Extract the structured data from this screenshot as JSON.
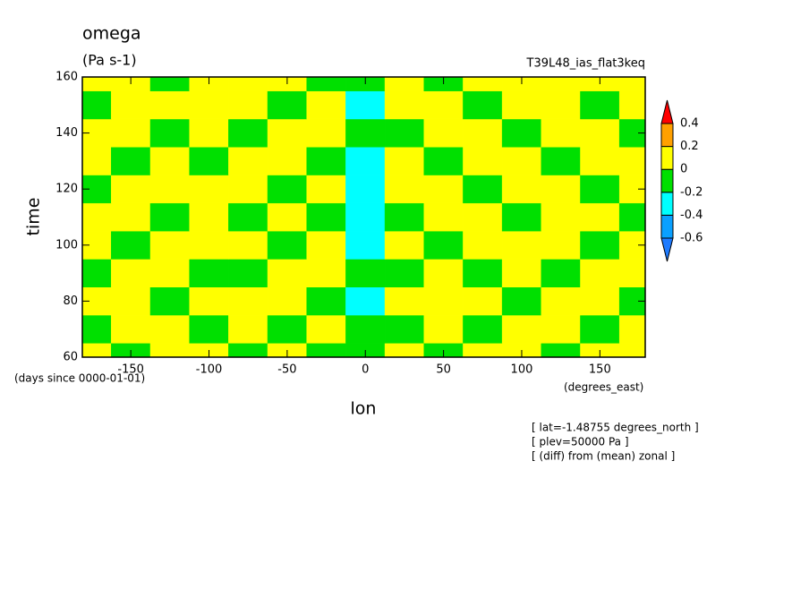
{
  "chart_data": {
    "type": "contour",
    "title": "omega",
    "units": "(Pa s-1)",
    "run_label": "T39L48_ias_flat3keq",
    "x_label": "lon",
    "y_label": "time",
    "y_units": "(days since 0000-01-01)",
    "x_units": "(degrees_east)",
    "notes": [
      "[ lat=-1.48755 degrees_north ]",
      "[ plev=50000 Pa ]",
      "[ (diff) from (mean) zonal ]"
    ],
    "xlim": [
      -181,
      179
    ],
    "xticks": [
      -150,
      -100,
      -50,
      0,
      50,
      100,
      150
    ],
    "ylim": [
      60,
      160
    ],
    "yticks": [
      60,
      80,
      100,
      120,
      140,
      160
    ],
    "x": [
      -175,
      -150,
      -125,
      -100,
      -75,
      -50,
      -25,
      0,
      25,
      50,
      75,
      100,
      125,
      150,
      175
    ],
    "y": [
      60,
      70,
      80,
      90,
      100,
      110,
      120,
      130,
      140,
      150,
      160
    ],
    "z": [
      [
        0.05,
        -0.05,
        0.05,
        0.05,
        -0.05,
        0.05,
        -0.05,
        -0.1,
        0.05,
        -0.05,
        0.05,
        0.05,
        -0.05,
        0.05,
        0.05
      ],
      [
        -0.05,
        0.05,
        0.05,
        -0.05,
        0.05,
        -0.05,
        0.05,
        -0.1,
        -0.05,
        0.05,
        -0.05,
        0.05,
        0.05,
        -0.05,
        0.05
      ],
      [
        0.05,
        0.05,
        -0.05,
        0.05,
        0.05,
        0.05,
        -0.05,
        -0.25,
        0.05,
        0.05,
        0.05,
        -0.05,
        0.05,
        0.05,
        -0.05
      ],
      [
        -0.05,
        0.05,
        0.05,
        -0.05,
        -0.05,
        0.05,
        0.05,
        -0.1,
        -0.05,
        0.05,
        -0.05,
        0.05,
        -0.05,
        0.05,
        0.05
      ],
      [
        0.05,
        -0.05,
        0.05,
        0.05,
        0.05,
        -0.05,
        0.05,
        -0.25,
        0.05,
        -0.05,
        0.05,
        0.05,
        0.05,
        -0.05,
        0.05
      ],
      [
        0.05,
        0.05,
        -0.05,
        0.05,
        -0.05,
        0.05,
        -0.05,
        -0.25,
        -0.05,
        0.05,
        0.05,
        -0.05,
        0.05,
        0.05,
        -0.05
      ],
      [
        -0.05,
        0.05,
        0.05,
        0.05,
        0.05,
        -0.05,
        0.05,
        -0.25,
        0.05,
        0.05,
        -0.05,
        0.05,
        0.05,
        -0.05,
        0.05
      ],
      [
        0.05,
        -0.05,
        0.05,
        -0.05,
        0.05,
        0.05,
        -0.05,
        -0.25,
        0.05,
        -0.05,
        0.05,
        0.05,
        -0.05,
        0.05,
        0.05
      ],
      [
        0.05,
        0.05,
        -0.05,
        0.05,
        -0.05,
        0.05,
        0.05,
        -0.1,
        -0.05,
        0.05,
        0.05,
        -0.05,
        0.05,
        0.05,
        -0.05
      ],
      [
        -0.05,
        0.05,
        0.05,
        0.05,
        0.05,
        -0.05,
        0.05,
        -0.25,
        0.05,
        0.05,
        -0.05,
        0.05,
        0.05,
        -0.05,
        0.05
      ],
      [
        0.05,
        0.05,
        -0.05,
        0.05,
        0.05,
        0.05,
        -0.05,
        -0.1,
        0.05,
        -0.05,
        0.05,
        0.05,
        0.05,
        0.05,
        0.05
      ]
    ],
    "levels": [
      -0.6,
      -0.4,
      -0.2,
      0,
      0.2,
      0.4
    ],
    "colors": [
      "#1e7bff",
      "#0aa0ff",
      "#00ffff",
      "#00e000",
      "#ffff00",
      "#ffa000",
      "#ff0000"
    ]
  }
}
